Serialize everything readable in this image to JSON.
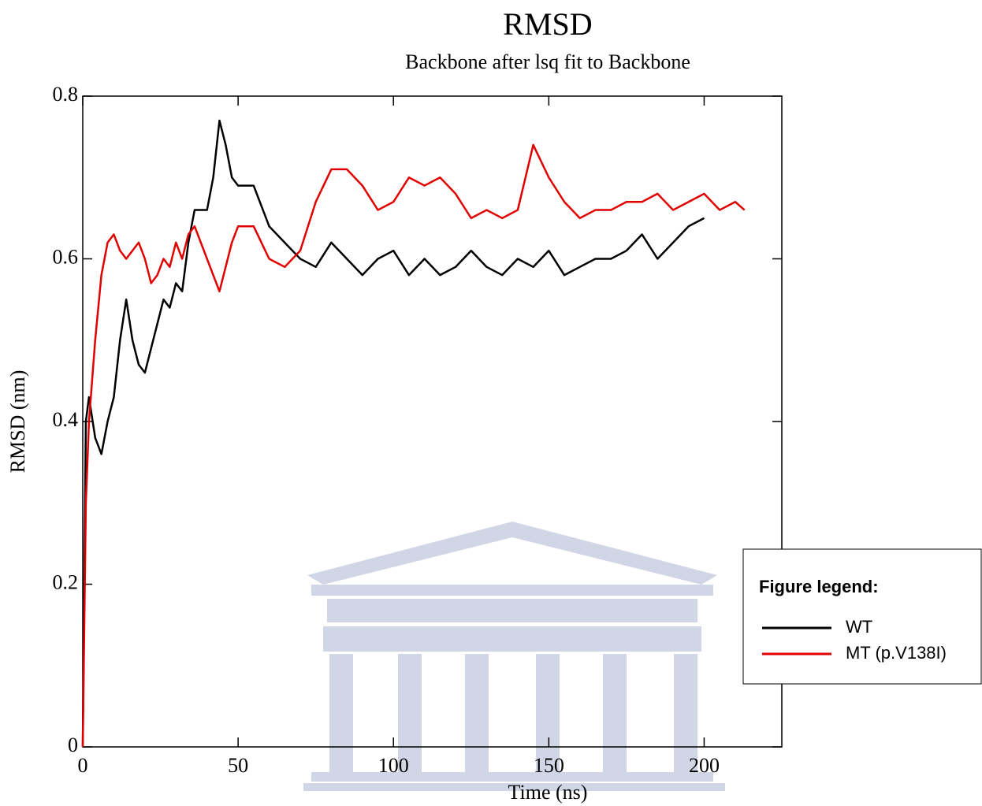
{
  "chart_data": {
    "type": "line",
    "title": "RMSD",
    "subtitle": "Backbone after lsq fit to Backbone",
    "x_label": "Time (ns)",
    "y_label": "RMSD (nm)",
    "legend_title": "Figure legend:",
    "legend_position": "right",
    "xlim": [
      0,
      225
    ],
    "ylim": [
      0,
      0.8
    ],
    "xticks": [
      0,
      50,
      100,
      150,
      200
    ],
    "yticks": [
      0,
      0.2,
      0.4,
      0.6,
      0.8
    ],
    "x": [
      0,
      1,
      2,
      4,
      6,
      8,
      10,
      12,
      14,
      16,
      18,
      20,
      22,
      24,
      26,
      28,
      30,
      32,
      34,
      36,
      38,
      40,
      42,
      44,
      46,
      48,
      50,
      55,
      60,
      65,
      70,
      75,
      80,
      85,
      90,
      95,
      100,
      105,
      110,
      115,
      120,
      125,
      130,
      135,
      140,
      145,
      150,
      155,
      160,
      165,
      170,
      175,
      180,
      185,
      190,
      195,
      200,
      205,
      210,
      213
    ],
    "series": [
      {
        "name": "WT",
        "color": "#000000",
        "values": [
          0,
          0.4,
          0.43,
          0.38,
          0.36,
          0.4,
          0.43,
          0.5,
          0.55,
          0.5,
          0.47,
          0.46,
          0.49,
          0.52,
          0.55,
          0.54,
          0.57,
          0.56,
          0.62,
          0.66,
          0.66,
          0.66,
          0.7,
          0.77,
          0.74,
          0.7,
          0.69,
          0.69,
          0.64,
          0.62,
          0.6,
          0.59,
          0.62,
          0.6,
          0.58,
          0.6,
          0.61,
          0.58,
          0.6,
          0.58,
          0.59,
          0.61,
          0.59,
          0.58,
          0.6,
          0.59,
          0.61,
          0.58,
          0.59,
          0.6,
          0.6,
          0.61,
          0.63,
          0.6,
          0.62,
          0.64,
          0.65,
          null,
          null,
          null
        ]
      },
      {
        "name": "MT (p.V138I)",
        "color": "#e00000",
        "values": [
          0,
          0.3,
          0.4,
          0.5,
          0.58,
          0.62,
          0.63,
          0.61,
          0.6,
          0.61,
          0.62,
          0.6,
          0.57,
          0.58,
          0.6,
          0.59,
          0.62,
          0.6,
          0.63,
          0.64,
          0.62,
          0.6,
          0.58,
          0.56,
          0.59,
          0.62,
          0.64,
          0.64,
          0.6,
          0.59,
          0.61,
          0.67,
          0.71,
          0.71,
          0.69,
          0.66,
          0.67,
          0.7,
          0.69,
          0.7,
          0.68,
          0.65,
          0.66,
          0.65,
          0.66,
          0.74,
          0.7,
          0.67,
          0.65,
          0.66,
          0.66,
          0.67,
          0.67,
          0.68,
          0.66,
          0.67,
          0.68,
          0.66,
          0.67,
          0.66
        ]
      }
    ]
  }
}
